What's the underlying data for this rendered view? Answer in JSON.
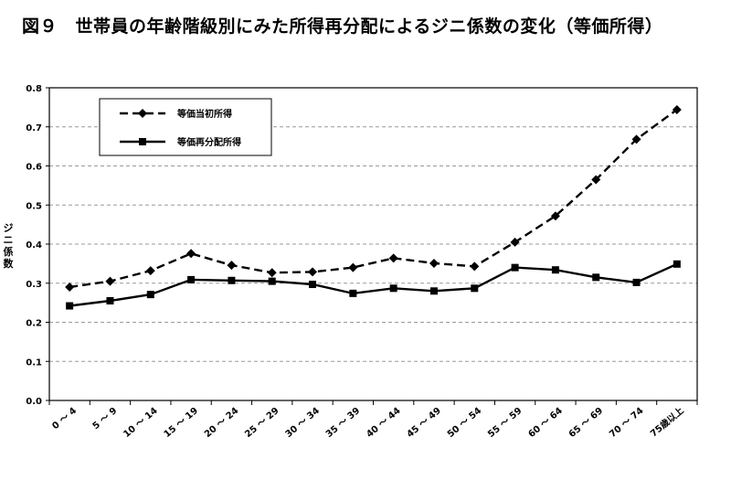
{
  "title": "図９　世帯員の年齢階級別にみた所得再分配によるジニ係数の変化（等価所得）",
  "chart_data": {
    "type": "line",
    "ylabel": "ジニ係数",
    "ylim": [
      0,
      0.8
    ],
    "yticks": [
      "0.0",
      "0.1",
      "0.2",
      "0.3",
      "0.4",
      "0.5",
      "0.6",
      "0.7",
      "0.8"
    ],
    "grid": true,
    "legend_position": "top-left",
    "categories": [
      "0 ～ 4",
      "5 ～ 9",
      "10 ～ 14",
      "15 ～ 19",
      "20 ～ 24",
      "25 ～ 29",
      "30 ～ 34",
      "35 ～ 39",
      "40 ～ 44",
      "45 ～ 49",
      "50 ～ 54",
      "55 ～ 59",
      "60 ～ 64",
      "65 ～ 69",
      "70 ～ 74",
      "75歳以上"
    ],
    "series": [
      {
        "name": "等価当初所得",
        "style": "dashed",
        "marker": "diamond",
        "values": [
          0.29,
          0.305,
          0.332,
          0.376,
          0.346,
          0.327,
          0.329,
          0.34,
          0.364,
          0.351,
          0.343,
          0.405,
          0.472,
          0.565,
          0.668,
          0.744
        ]
      },
      {
        "name": "等価再分配所得",
        "style": "solid",
        "marker": "square",
        "values": [
          0.242,
          0.255,
          0.271,
          0.309,
          0.307,
          0.305,
          0.297,
          0.274,
          0.287,
          0.28,
          0.287,
          0.34,
          0.334,
          0.315,
          0.302,
          0.349
        ]
      }
    ],
    "colors": {
      "line": "#000000",
      "grid": "#9a9a9a"
    }
  }
}
